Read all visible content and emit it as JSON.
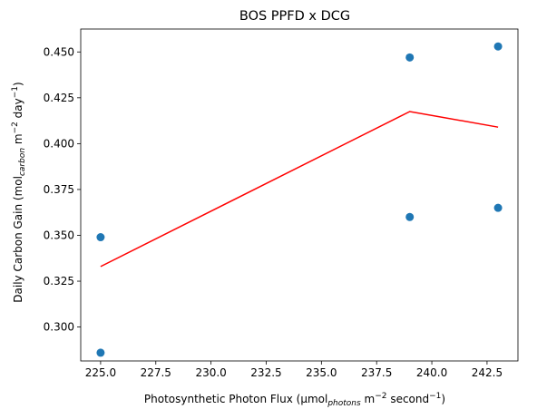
{
  "chart_data": {
    "type": "scatter",
    "title": "BOS PPFD x DCG",
    "xlabel": {
      "prefix": "Photosynthetic Photon Flux (µmol",
      "subscript": "photons",
      "middle": " m",
      "exp1": "−2",
      "middle2": " second",
      "exp2": "−1",
      "suffix": ")"
    },
    "ylabel": {
      "prefix": "Daily Carbon Gain (mol",
      "subscript": "carbon",
      "middle": " m",
      "exp1": "−2",
      "middle2": " day",
      "exp2": "−1",
      "suffix": ")"
    },
    "xlim": [
      224.1,
      243.9
    ],
    "ylim": [
      0.2815,
      0.4625
    ],
    "x_ticks": [
      "225.0",
      "227.5",
      "230.0",
      "232.5",
      "235.0",
      "237.5",
      "240.0",
      "242.5"
    ],
    "y_ticks": [
      "0.300",
      "0.325",
      "0.350",
      "0.375",
      "0.400",
      "0.425",
      "0.450"
    ],
    "points": {
      "color": "#1f77b4",
      "x": [
        225,
        225,
        239,
        239,
        243,
        243
      ],
      "y": [
        0.349,
        0.286,
        0.447,
        0.36,
        0.453,
        0.365
      ]
    },
    "line": {
      "color": "#ff0000",
      "x": [
        225,
        239,
        243
      ],
      "y": [
        0.333,
        0.4175,
        0.409
      ]
    },
    "grid": false,
    "legend": false
  }
}
